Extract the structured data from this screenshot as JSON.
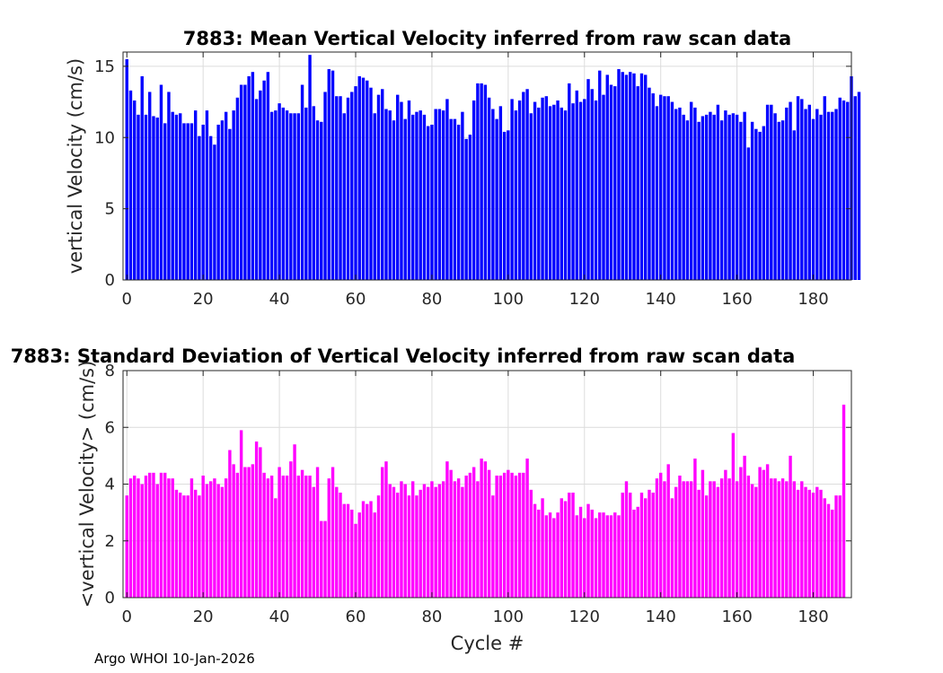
{
  "chart_data": [
    {
      "type": "bar",
      "title": "7883: Mean Vertical Velocity inferred from raw scan data",
      "xlabel": "",
      "ylabel": "vertical Velocity (cm/s)",
      "xlim": [
        -1,
        190
      ],
      "ylim": [
        0,
        16
      ],
      "xticks": [
        0,
        20,
        40,
        60,
        80,
        100,
        120,
        140,
        160,
        180
      ],
      "yticks": [
        0,
        5,
        10,
        15
      ],
      "grid": true,
      "color": "#0000ff",
      "x_start": 0,
      "values": [
        15.5,
        13.3,
        12.6,
        11.6,
        14.3,
        11.6,
        13.2,
        11.5,
        11.4,
        13.7,
        11.0,
        13.2,
        11.8,
        11.6,
        11.7,
        11.0,
        11.0,
        11.0,
        11.9,
        10.1,
        10.9,
        11.9,
        10.1,
        9.5,
        10.9,
        11.2,
        11.8,
        10.6,
        11.9,
        12.8,
        13.7,
        13.7,
        14.3,
        14.6,
        12.7,
        13.3,
        14.0,
        14.6,
        11.8,
        11.9,
        12.4,
        12.1,
        11.9,
        11.7,
        11.7,
        11.7,
        13.7,
        12.1,
        15.8,
        12.2,
        11.2,
        11.1,
        13.2,
        14.8,
        14.7,
        12.9,
        12.9,
        11.7,
        12.8,
        13.2,
        13.6,
        14.3,
        14.2,
        14.0,
        13.5,
        11.7,
        13.0,
        13.4,
        12.0,
        11.9,
        11.2,
        13.0,
        12.5,
        11.3,
        12.6,
        11.6,
        11.8,
        11.9,
        11.6,
        10.8,
        10.9,
        12.0,
        12.0,
        11.9,
        12.7,
        11.3,
        11.3,
        10.9,
        11.8,
        9.9,
        10.2,
        12.6,
        13.8,
        13.8,
        13.7,
        12.8,
        12.0,
        11.3,
        12.2,
        10.4,
        10.5,
        12.7,
        11.9,
        12.6,
        13.2,
        13.4,
        11.7,
        12.5,
        12.1,
        12.8,
        12.9,
        12.2,
        12.3,
        12.6,
        12.1,
        11.9,
        13.8,
        12.4,
        13.3,
        12.5,
        12.7,
        14.1,
        13.4,
        12.6,
        14.7,
        13.0,
        14.4,
        13.7,
        13.6,
        14.8,
        14.6,
        14.4,
        14.6,
        14.5,
        13.6,
        14.5,
        14.4,
        13.5,
        13.1,
        12.2,
        13.0,
        12.9,
        12.9,
        12.5,
        12.0,
        12.1,
        11.6,
        11.2,
        12.5,
        12.1,
        11.1,
        11.5,
        11.6,
        11.8,
        11.6,
        12.3,
        11.2,
        11.9,
        11.6,
        11.7,
        11.6,
        11.1,
        11.8,
        9.3,
        11.1,
        10.6,
        10.4,
        10.8,
        12.3,
        12.3,
        11.7,
        11.1,
        11.2,
        12.1,
        12.5,
        10.5,
        12.9,
        12.7,
        12.0,
        12.3,
        11.3,
        12.0,
        11.6,
        12.9,
        11.8,
        11.8,
        12.0,
        12.8,
        12.6,
        12.5,
        14.3,
        12.9,
        13.2
      ]
    },
    {
      "type": "bar",
      "title": "7883: Standard Deviation of Vertical Velocity inferred from raw scan data",
      "xlabel": "Cycle #",
      "ylabel": "<vertical Velocity> (cm/s)",
      "xlim": [
        -1,
        190
      ],
      "ylim": [
        0,
        8
      ],
      "xticks": [
        0,
        20,
        40,
        60,
        80,
        100,
        120,
        140,
        160,
        180
      ],
      "yticks": [
        0,
        2,
        4,
        6,
        8
      ],
      "grid": true,
      "color": "#ff00ff",
      "x_start": 0,
      "values": [
        3.6,
        4.2,
        4.3,
        4.2,
        4.0,
        4.3,
        4.4,
        4.4,
        4.0,
        4.4,
        4.4,
        4.2,
        4.2,
        3.8,
        3.7,
        3.6,
        3.6,
        4.2,
        3.8,
        3.6,
        4.3,
        4.0,
        4.1,
        4.2,
        4.0,
        3.9,
        4.2,
        5.2,
        4.7,
        4.4,
        5.9,
        4.6,
        4.6,
        4.7,
        5.5,
        5.3,
        4.4,
        4.2,
        4.3,
        3.5,
        4.6,
        4.3,
        4.3,
        4.8,
        5.4,
        4.3,
        4.5,
        4.3,
        4.3,
        3.9,
        4.6,
        2.7,
        2.7,
        4.2,
        4.6,
        3.9,
        3.7,
        3.3,
        3.3,
        3.1,
        2.6,
        3.0,
        3.4,
        3.3,
        3.4,
        3.0,
        3.6,
        4.6,
        4.8,
        4.0,
        3.9,
        3.7,
        4.1,
        4.0,
        3.6,
        4.1,
        3.6,
        3.8,
        4.0,
        3.9,
        4.1,
        3.9,
        4.0,
        4.1,
        4.8,
        4.5,
        4.1,
        4.2,
        3.9,
        4.3,
        4.4,
        4.6,
        4.1,
        4.9,
        4.8,
        4.5,
        3.6,
        4.3,
        4.3,
        4.4,
        4.5,
        4.4,
        4.3,
        4.4,
        4.4,
        4.9,
        3.8,
        3.3,
        3.1,
        3.5,
        2.9,
        3.0,
        2.8,
        3.0,
        3.5,
        3.4,
        3.7,
        3.7,
        2.9,
        3.2,
        2.8,
        3.3,
        3.1,
        2.8,
        3.0,
        3.0,
        2.9,
        2.9,
        3.0,
        2.9,
        3.7,
        4.1,
        3.7,
        3.1,
        3.2,
        3.7,
        3.5,
        3.8,
        3.7,
        4.2,
        4.4,
        4.1,
        4.7,
        3.5,
        3.9,
        4.3,
        4.1,
        4.1,
        4.1,
        4.9,
        3.8,
        4.5,
        3.6,
        4.1,
        4.1,
        3.9,
        4.2,
        4.5,
        4.2,
        5.8,
        4.1,
        4.6,
        5.0,
        4.3,
        4.0,
        3.9,
        4.6,
        4.5,
        4.7,
        4.2,
        4.2,
        4.1,
        4.2,
        4.1,
        5.0,
        4.1,
        3.8,
        4.1,
        3.9,
        3.8,
        3.7,
        3.9,
        3.8,
        3.5,
        3.3,
        3.1,
        3.6,
        3.6,
        6.8
      ]
    }
  ],
  "footer": {
    "text": "Argo WHOI 10-Jan-2026"
  }
}
